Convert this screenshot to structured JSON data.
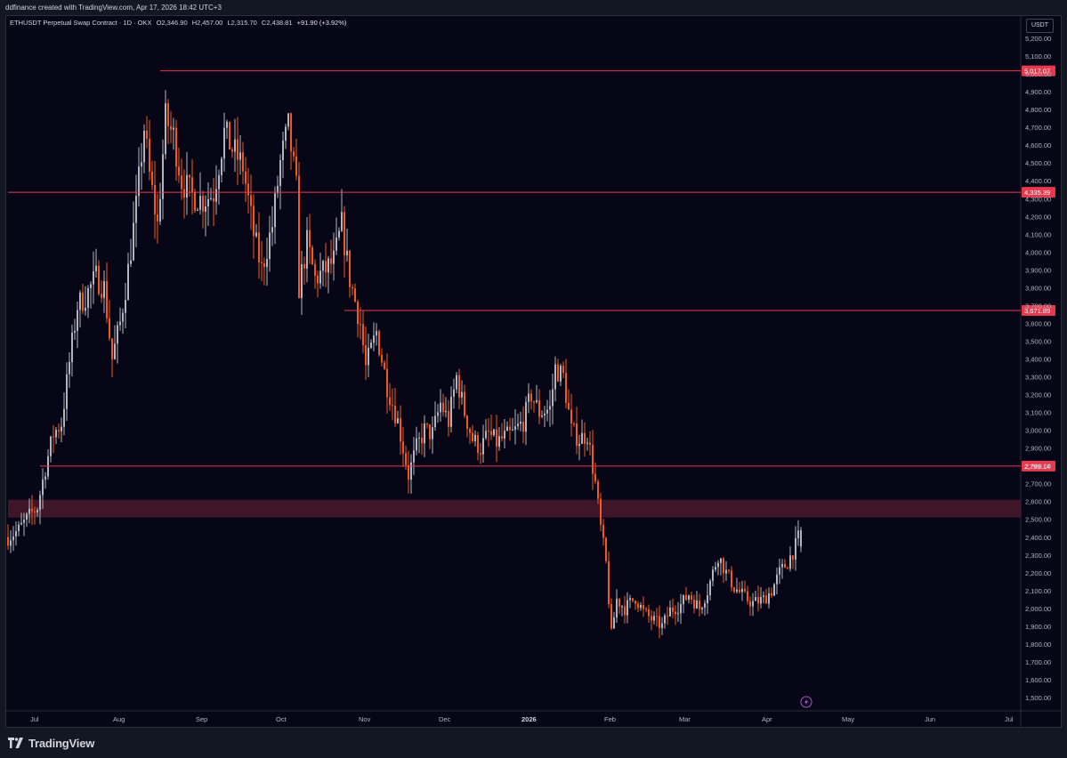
{
  "header": {
    "credit": "ddfinance created with TradingView.com, Apr 17, 2026 18:42 UTC+3"
  },
  "legend": {
    "symbol": "ETHUSDT Perpetual Swap Contract · 1D · OKX",
    "open": "O2,346.90",
    "high": "H2,457.00",
    "low": "L2,315.70",
    "close": "C2,438.81",
    "change": "+91.90 (+3.92%)"
  },
  "currency_button": "USDT",
  "footer": {
    "brand": "TradingView"
  },
  "colors": {
    "background": "#060617",
    "up_candle": "#b2b5be",
    "down_candle": "#f05a22",
    "level_line": "#e53950",
    "zone_fill": "#4a1a2a"
  },
  "chart_data": {
    "type": "candlestick",
    "title": "ETHUSDT Perpetual Swap Contract · 1D · OKX",
    "yaxis": {
      "min": 1450,
      "max": 5300,
      "ticks": [
        1500,
        1600,
        1700,
        1800,
        1900,
        2000,
        2100,
        2200,
        2300,
        2400,
        2500,
        2600,
        2700,
        2800,
        2900,
        3000,
        3100,
        3200,
        3300,
        3400,
        3500,
        3600,
        3700,
        3800,
        3900,
        4000,
        4100,
        4200,
        4300,
        4400,
        4500,
        4600,
        4700,
        4800,
        4900,
        5000,
        5100,
        5200
      ],
      "tick_labels": [
        "1,500.00",
        "1,600.00",
        "1,700.00",
        "1,800.00",
        "1,900.00",
        "2,000.00",
        "2,100.00",
        "2,200.00",
        "2,300.00",
        "2,400.00",
        "2,500.00",
        "2,600.00",
        "2,700.00",
        "2,800.00",
        "2,900.00",
        "3,000.00",
        "3,100.00",
        "3,200.00",
        "3,300.00",
        "3,400.00",
        "3,500.00",
        "3,600.00",
        "3,700.00",
        "3,800.00",
        "3,900.00",
        "4,000.00",
        "4,100.00",
        "4,200.00",
        "4,300.00",
        "4,400.00",
        "4,500.00",
        "4,600.00",
        "4,700.00",
        "4,800.00",
        "4,900.00",
        "5,000.00",
        "5,100.00",
        "5,200.00"
      ]
    },
    "xaxis": {
      "labels": [
        {
          "text": "Jul",
          "date": "2025-07-01"
        },
        {
          "text": "Aug",
          "date": "2025-08-01"
        },
        {
          "text": "Sep",
          "date": "2025-09-01"
        },
        {
          "text": "Oct",
          "date": "2025-10-01"
        },
        {
          "text": "Nov",
          "date": "2025-11-01"
        },
        {
          "text": "Dec",
          "date": "2025-12-01"
        },
        {
          "text": "2026",
          "date": "2026-01-01",
          "bold": true
        },
        {
          "text": "Feb",
          "date": "2026-02-01"
        },
        {
          "text": "Mar",
          "date": "2026-03-01"
        },
        {
          "text": "Apr",
          "date": "2026-04-01"
        },
        {
          "text": "May",
          "date": "2026-05-01"
        },
        {
          "text": "Jun",
          "date": "2026-06-01"
        },
        {
          "text": "Jul",
          "date": "2026-07-01"
        }
      ]
    },
    "horizontal_levels": [
      {
        "price": 5017.07,
        "label": "5,017.07",
        "from_date": "2025-08-20"
      },
      {
        "price": 4335.39,
        "label": "4,335.39",
        "from_date": "2025-06-24"
      },
      {
        "price": 3671.89,
        "label": "3,671.89",
        "from_date": "2025-10-28"
      },
      {
        "price": 2799.14,
        "label": "2,799.14",
        "from_date": "2025-07-06"
      }
    ],
    "zones": [
      {
        "low": 2510,
        "high": 2610,
        "from_date": "2025-06-24",
        "to_date": "2026-07-20"
      }
    ],
    "candles": {
      "start_date": "2025-06-24",
      "points": [
        [
          "2025-06-24",
          2400
        ],
        [
          "2025-06-28",
          2440
        ],
        [
          "2025-07-01",
          2500
        ],
        [
          "2025-07-05",
          2570
        ],
        [
          "2025-07-08",
          2790
        ],
        [
          "2025-07-11",
          2980
        ],
        [
          "2025-07-14",
          3040
        ],
        [
          "2025-07-17",
          3380
        ],
        [
          "2025-07-20",
          3700
        ],
        [
          "2025-07-23",
          3750
        ],
        [
          "2025-07-27",
          3860
        ],
        [
          "2025-07-30",
          3800
        ],
        [
          "2025-08-02",
          3400
        ],
        [
          "2025-08-05",
          3600
        ],
        [
          "2025-08-08",
          3900
        ],
        [
          "2025-08-11",
          4250
        ],
        [
          "2025-08-14",
          4700
        ],
        [
          "2025-08-16",
          4430
        ],
        [
          "2025-08-19",
          4150
        ],
        [
          "2025-08-22",
          4750
        ],
        [
          "2025-08-25",
          4650
        ],
        [
          "2025-08-28",
          4400
        ],
        [
          "2025-09-01",
          4320
        ],
        [
          "2025-09-05",
          4290
        ],
        [
          "2025-09-09",
          4330
        ],
        [
          "2025-09-13",
          4670
        ],
        [
          "2025-09-16",
          4580
        ],
        [
          "2025-09-20",
          4480
        ],
        [
          "2025-09-24",
          4100
        ],
        [
          "2025-09-27",
          3900
        ],
        [
          "2025-10-01",
          4150
        ],
        [
          "2025-10-04",
          4500
        ],
        [
          "2025-10-07",
          4700
        ],
        [
          "2025-10-10",
          4350
        ],
        [
          "2025-10-11",
          3800
        ],
        [
          "2025-10-14",
          4050
        ],
        [
          "2025-10-17",
          3850
        ],
        [
          "2025-10-21",
          3900
        ],
        [
          "2025-10-24",
          3950
        ],
        [
          "2025-10-27",
          4150
        ],
        [
          "2025-10-30",
          3850
        ],
        [
          "2025-11-03",
          3600
        ],
        [
          "2025-11-05",
          3350
        ],
        [
          "2025-11-09",
          3550
        ],
        [
          "2025-11-13",
          3250
        ],
        [
          "2025-11-17",
          3050
        ],
        [
          "2025-11-21",
          2750
        ],
        [
          "2025-11-24",
          2900
        ],
        [
          "2025-11-27",
          3000
        ],
        [
          "2025-11-30",
          2980
        ],
        [
          "2025-12-03",
          3150
        ],
        [
          "2025-12-06",
          3050
        ],
        [
          "2025-12-09",
          3300
        ],
        [
          "2025-12-12",
          3100
        ],
        [
          "2025-12-15",
          2950
        ],
        [
          "2025-12-18",
          2900
        ],
        [
          "2025-12-21",
          2980
        ],
        [
          "2025-12-24",
          2930
        ],
        [
          "2025-12-27",
          2960
        ],
        [
          "2025-12-30",
          2980
        ],
        [
          "2026-01-03",
          3050
        ],
        [
          "2026-01-06",
          3200
        ],
        [
          "2026-01-09",
          3100
        ],
        [
          "2026-01-13",
          3120
        ],
        [
          "2026-01-15",
          3350
        ],
        [
          "2026-01-18",
          3300
        ],
        [
          "2026-01-21",
          3000
        ],
        [
          "2026-01-24",
          2950
        ],
        [
          "2026-01-27",
          2980
        ],
        [
          "2026-01-30",
          2700
        ],
        [
          "2026-02-01",
          2450
        ],
        [
          "2026-02-03",
          2250
        ],
        [
          "2026-02-05",
          1850
        ],
        [
          "2026-02-07",
          2050
        ],
        [
          "2026-02-10",
          2000
        ],
        [
          "2026-02-14",
          2060
        ],
        [
          "2026-02-17",
          1980
        ],
        [
          "2026-02-20",
          1940
        ],
        [
          "2026-02-24",
          1900
        ],
        [
          "2026-02-27",
          1990
        ],
        [
          "2026-03-03",
          2020
        ],
        [
          "2026-03-06",
          2080
        ],
        [
          "2026-03-10",
          2000
        ],
        [
          "2026-03-13",
          2100
        ],
        [
          "2026-03-17",
          2300
        ],
        [
          "2026-03-20",
          2200
        ],
        [
          "2026-03-23",
          2120
        ],
        [
          "2026-03-27",
          2060
        ],
        [
          "2026-03-30",
          2030
        ],
        [
          "2026-04-03",
          2050
        ],
        [
          "2026-04-06",
          2100
        ],
        [
          "2026-04-09",
          2200
        ],
        [
          "2026-04-12",
          2260
        ],
        [
          "2026-04-15",
          2350
        ],
        [
          "2026-04-17",
          2438.81
        ]
      ]
    }
  }
}
